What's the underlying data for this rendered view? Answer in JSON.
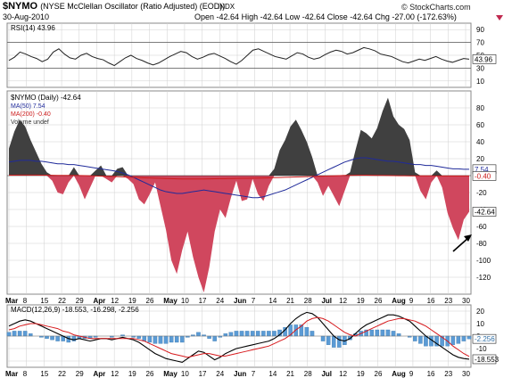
{
  "header": {
    "symbol": "$NYMO",
    "name": "(NYSE McClellan Oscillator (Ratio Adjusted) (EOD))",
    "exchange": "INDX",
    "date": "30-Aug-2010",
    "open_label": "Open",
    "open": "-42.64",
    "high_label": "High",
    "high": "-42.64",
    "low_label": "Low",
    "low": "-42.64",
    "close_label": "Close",
    "close": "-42.64",
    "chg_label": "Chg",
    "chg": "-27.00 (-172.63%)",
    "brand": "© StockCharts.com",
    "chg_direction_icon": "down-triangle-icon"
  },
  "colors": {
    "positive_fill": "#404040",
    "negative_fill": "#d0475e",
    "ma50": "#1f2a9a",
    "ma200": "#cc1b1b",
    "rsi_line": "#222222",
    "macd_line": "#000000",
    "signal_line": "#d7191c",
    "histogram": "#5b9bd5",
    "grid": "#cfcfcf"
  },
  "chart_data": [
    {
      "type": "line",
      "panel": "rsi",
      "legend": "RSI(14) 43.96",
      "last_value_label": "43.96",
      "ylim": [
        0,
        100
      ],
      "yticks": [
        10,
        30,
        50,
        70,
        90
      ],
      "reference_lines": [
        30,
        70
      ],
      "series": [
        {
          "name": "RSI(14)",
          "values": [
            42,
            47,
            55,
            52,
            48,
            45,
            40,
            44,
            55,
            60,
            52,
            46,
            44,
            50,
            53,
            48,
            45,
            43,
            38,
            34,
            40,
            46,
            50,
            45,
            42,
            38,
            35,
            38,
            43,
            48,
            52,
            56,
            54,
            48,
            44,
            47,
            51,
            53,
            49,
            45,
            40,
            36,
            42,
            50,
            58,
            60,
            56,
            52,
            48,
            46,
            44,
            49,
            54,
            52,
            47,
            44,
            46,
            51,
            55,
            58,
            56,
            52,
            54,
            58,
            62,
            60,
            57,
            52,
            50,
            48,
            44,
            40,
            38,
            41,
            44,
            42,
            45,
            48,
            44,
            41,
            39,
            42,
            45,
            43.96
          ]
        }
      ]
    },
    {
      "type": "area",
      "panel": "price",
      "legend": [
        "$NYMO (Daily) -42.64",
        "MA(50) 7.54",
        "MA(200) -0.40",
        "Volume undef"
      ],
      "last_value_label": "-42.64",
      "ma50_label": "7.54",
      "ma200_label": "-0.40",
      "ylim": [
        -140,
        100
      ],
      "yticks": [
        80,
        60,
        40,
        20,
        -20,
        -40,
        -60,
        -80,
        -100,
        -120
      ],
      "x_tick_labels": [
        "Mar",
        "8",
        "15",
        "22",
        "29",
        "Apr",
        "12",
        "19",
        "26",
        "May",
        "10",
        "17",
        "24",
        "Jun",
        "7",
        "14",
        "21",
        "28",
        "Jul",
        "12",
        "19",
        "26",
        "Aug",
        "9",
        "16",
        "23",
        "30"
      ],
      "series": [
        {
          "name": "$NYMO",
          "values": [
            32,
            52,
            66,
            58,
            42,
            28,
            14,
            4,
            -6,
            -20,
            -22,
            -8,
            10,
            -12,
            -28,
            -14,
            6,
            12,
            -4,
            -8,
            8,
            10,
            -4,
            -10,
            -28,
            -34,
            -22,
            -8,
            -36,
            -64,
            -100,
            -116,
            -88,
            -66,
            -96,
            -120,
            -138,
            -108,
            -66,
            -40,
            -50,
            -26,
            -6,
            -30,
            -28,
            -4,
            -22,
            -30,
            -12,
            8,
            30,
            42,
            58,
            66,
            54,
            40,
            22,
            -8,
            -24,
            -12,
            -24,
            -36,
            -18,
            4,
            30,
            54,
            50,
            44,
            56,
            76,
            92,
            70,
            60,
            55,
            42,
            4,
            -18,
            -28,
            -8,
            6,
            -14,
            -44,
            -62,
            -76,
            -52,
            -42.64
          ]
        },
        {
          "name": "MA(50)",
          "values": [
            16,
            17,
            18,
            18,
            18,
            17,
            17,
            16,
            15,
            14,
            14,
            13,
            13,
            12,
            11,
            10,
            9,
            8,
            7,
            6,
            5,
            3,
            1,
            -2,
            -5,
            -8,
            -11,
            -14,
            -17,
            -19,
            -20,
            -21,
            -21,
            -20,
            -19,
            -18,
            -17,
            -18,
            -19,
            -20,
            -21,
            -22,
            -23,
            -24,
            -25,
            -26,
            -26,
            -25,
            -23,
            -21,
            -19,
            -17,
            -14,
            -11,
            -8,
            -5,
            -2,
            1,
            4,
            7,
            10,
            13,
            16,
            18,
            20,
            21,
            21,
            20,
            19,
            18,
            17,
            17,
            16,
            15,
            14,
            13,
            13,
            12,
            12,
            11,
            10,
            9,
            8,
            8,
            7.5,
            7.54
          ]
        },
        {
          "name": "MA(200)",
          "values": [
            0.5,
            0.5,
            0.6,
            0.6,
            0.6,
            0.6,
            0.5,
            0.5,
            0.4,
            0.3,
            0.3,
            0.2,
            0.2,
            0.1,
            0,
            -0.2,
            -0.4,
            -0.6,
            -0.8,
            -1,
            -1.2,
            -1.5,
            -1.8,
            -2,
            -2.3,
            -2.6,
            -2.8,
            -3,
            -3.2,
            -3.4,
            -3.6,
            -3.8,
            -3.9,
            -4,
            -4,
            -4,
            -3.9,
            -3.8,
            -3.7,
            -3.6,
            -3.5,
            -3.4,
            -3.3,
            -3.2,
            -3.1,
            -3,
            -2.9,
            -2.8,
            -2.6,
            -2.4,
            -2.2,
            -2,
            -1.8,
            -1.6,
            -1.4,
            -1.2,
            -1,
            -0.8,
            -0.6,
            -0.4,
            -0.2,
            0,
            0.2,
            0.3,
            0.4,
            0.5,
            0.5,
            0.4,
            0.3,
            0.2,
            0.1,
            0,
            -0.1,
            -0.1,
            -0.2,
            -0.2,
            -0.3,
            -0.3,
            -0.3,
            -0.35,
            -0.35,
            -0.38,
            -0.4,
            -0.4,
            -0.4,
            -0.4
          ]
        }
      ]
    },
    {
      "type": "line",
      "panel": "macd",
      "legend": "MACD(12,26,9) -18.553, -16.298, -2.256",
      "macd_label": "-18.553",
      "hist_label": "-2.256",
      "ylim": [
        -25,
        25
      ],
      "yticks": [
        20,
        10,
        0,
        -10,
        -20
      ],
      "series": [
        {
          "name": "MACD(12,26,9)",
          "values": [
            8,
            10,
            12,
            13,
            12,
            10,
            8,
            6,
            4,
            2,
            0,
            -2,
            -3,
            -2,
            -3,
            -4,
            -3,
            -2,
            -2,
            -3,
            -2,
            -1,
            -2,
            -3,
            -5,
            -8,
            -11,
            -14,
            -16,
            -18,
            -19,
            -20,
            -21,
            -18,
            -15,
            -12,
            -13,
            -16,
            -19,
            -17,
            -14,
            -12,
            -10,
            -9,
            -8,
            -7,
            -6,
            -5,
            -4,
            -2,
            1,
            5,
            10,
            14,
            17,
            19,
            18,
            15,
            10,
            5,
            0,
            -3,
            -4,
            -2,
            2,
            6,
            9,
            11,
            13,
            15,
            17,
            17,
            16,
            14,
            12,
            8,
            4,
            0,
            -3,
            -6,
            -9,
            -12,
            -15,
            -17,
            -18,
            -18.553
          ]
        },
        {
          "name": "Signal",
          "values": [
            5,
            6,
            8,
            9,
            10,
            10,
            9,
            8,
            7,
            6,
            4,
            3,
            1,
            0,
            -1,
            -2,
            -2,
            -2,
            -2,
            -2,
            -2,
            -2,
            -2,
            -2,
            -3,
            -4,
            -6,
            -8,
            -10,
            -12,
            -14,
            -15,
            -16,
            -17,
            -16,
            -15,
            -14,
            -14,
            -15,
            -16,
            -16,
            -15,
            -14,
            -13,
            -12,
            -11,
            -10,
            -9,
            -8,
            -6,
            -4,
            -2,
            1,
            5,
            8,
            12,
            14,
            15,
            14,
            12,
            9,
            6,
            3,
            1,
            0,
            2,
            4,
            6,
            8,
            10,
            12,
            13,
            14,
            14,
            13,
            12,
            10,
            8,
            5,
            2,
            -1,
            -4,
            -8,
            -11,
            -14,
            -16.298
          ]
        },
        {
          "name": "Histogram",
          "values": [
            3,
            4,
            4,
            4,
            2,
            0,
            -1,
            -2,
            -3,
            -4,
            -4,
            -5,
            -4,
            -2,
            -2,
            -2,
            -1,
            0,
            0,
            -1,
            0,
            1,
            0,
            -1,
            -2,
            -4,
            -5,
            -6,
            -6,
            -6,
            -5,
            -5,
            -5,
            -1,
            1,
            3,
            1,
            -2,
            -4,
            -1,
            2,
            3,
            4,
            4,
            4,
            4,
            4,
            4,
            4,
            4,
            5,
            7,
            9,
            9,
            9,
            7,
            4,
            0,
            -4,
            -7,
            -9,
            -9,
            -7,
            -3,
            2,
            4,
            5,
            5,
            5,
            5,
            5,
            4,
            2,
            0,
            -1,
            -4,
            -6,
            -8,
            -8,
            -8,
            -8,
            -8,
            -7,
            -6,
            -4,
            -2.256
          ]
        }
      ]
    }
  ]
}
